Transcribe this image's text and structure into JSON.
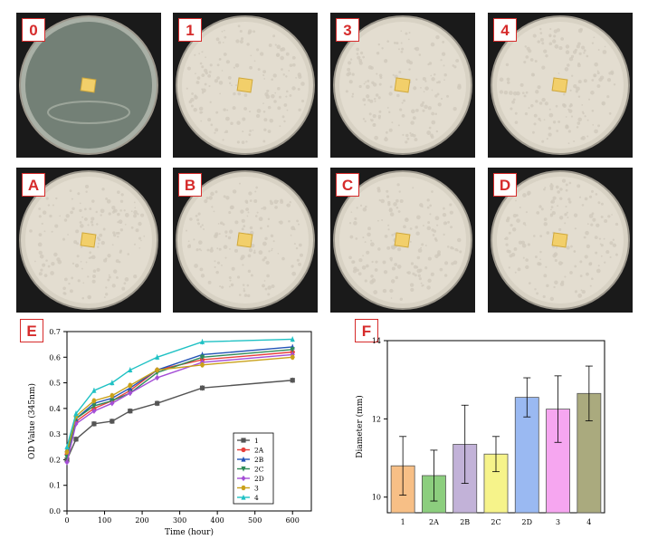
{
  "panels": [
    {
      "label": "0",
      "marker": ""
    },
    {
      "label": "1",
      "marker": ""
    },
    {
      "label": "3",
      "marker": ""
    },
    {
      "label": "4",
      "marker": ""
    },
    {
      "label": "A",
      "marker": ""
    },
    {
      "label": "B",
      "marker": ""
    },
    {
      "label": "C",
      "marker": ""
    },
    {
      "label": "D",
      "marker": ""
    }
  ],
  "chart_labels": {
    "left": "E",
    "right": "F"
  },
  "chart_data": [
    {
      "type": "line",
      "xlabel": "Time (hour)",
      "ylabel": "OD Value (345nm)",
      "xlim": [
        0,
        650
      ],
      "ylim": [
        0,
        0.7
      ],
      "xticks": [
        0,
        100,
        200,
        300,
        400,
        500,
        600
      ],
      "yticks": [
        0,
        0.1,
        0.2,
        0.3,
        0.4,
        0.5,
        0.6,
        0.7
      ],
      "ytick_labels": [
        "0.0",
        "0.1",
        "0.2",
        "0.3",
        "0.4",
        "0.5",
        "0.6",
        "0.7"
      ],
      "x": [
        0,
        24,
        72,
        120,
        168,
        240,
        360,
        600
      ],
      "series": [
        {
          "name": "1",
          "color": "#555555",
          "values": [
            0.2,
            0.28,
            0.34,
            0.35,
            0.39,
            0.42,
            0.48,
            0.51
          ]
        },
        {
          "name": "2A",
          "color": "#e8413c",
          "values": [
            0.22,
            0.35,
            0.4,
            0.43,
            0.47,
            0.55,
            0.59,
            0.62
          ]
        },
        {
          "name": "2B",
          "color": "#2454b8",
          "values": [
            0.24,
            0.36,
            0.42,
            0.44,
            0.48,
            0.55,
            0.61,
            0.64
          ]
        },
        {
          "name": "2C",
          "color": "#2e8b57",
          "values": [
            0.21,
            0.36,
            0.41,
            0.43,
            0.46,
            0.54,
            0.6,
            0.63
          ]
        },
        {
          "name": "2D",
          "color": "#a44ed6",
          "values": [
            0.19,
            0.34,
            0.39,
            0.42,
            0.46,
            0.52,
            0.58,
            0.61
          ]
        },
        {
          "name": "3",
          "color": "#c9a11a",
          "values": [
            0.23,
            0.37,
            0.43,
            0.45,
            0.49,
            0.55,
            0.57,
            0.6
          ]
        },
        {
          "name": "4",
          "color": "#1fc1c4",
          "values": [
            0.25,
            0.38,
            0.47,
            0.5,
            0.55,
            0.6,
            0.66,
            0.67
          ]
        }
      ]
    },
    {
      "type": "bar",
      "xlabel": "",
      "ylabel": "Diameter (mm)",
      "ylim": [
        9.6,
        14
      ],
      "yticks": [
        10,
        12,
        14
      ],
      "categories": [
        "1",
        "2A",
        "2B",
        "2C",
        "2D",
        "3",
        "4"
      ],
      "values": [
        10.8,
        10.55,
        11.35,
        11.1,
        12.55,
        12.25,
        12.65
      ],
      "errors": [
        0.75,
        0.65,
        1.0,
        0.45,
        0.5,
        0.85,
        0.7
      ],
      "colors": [
        "#f7bf86",
        "#8cce7e",
        "#c2b2d8",
        "#f6f38a",
        "#9ab9f2",
        "#f6a6f0",
        "#aaaa7e"
      ]
    }
  ]
}
